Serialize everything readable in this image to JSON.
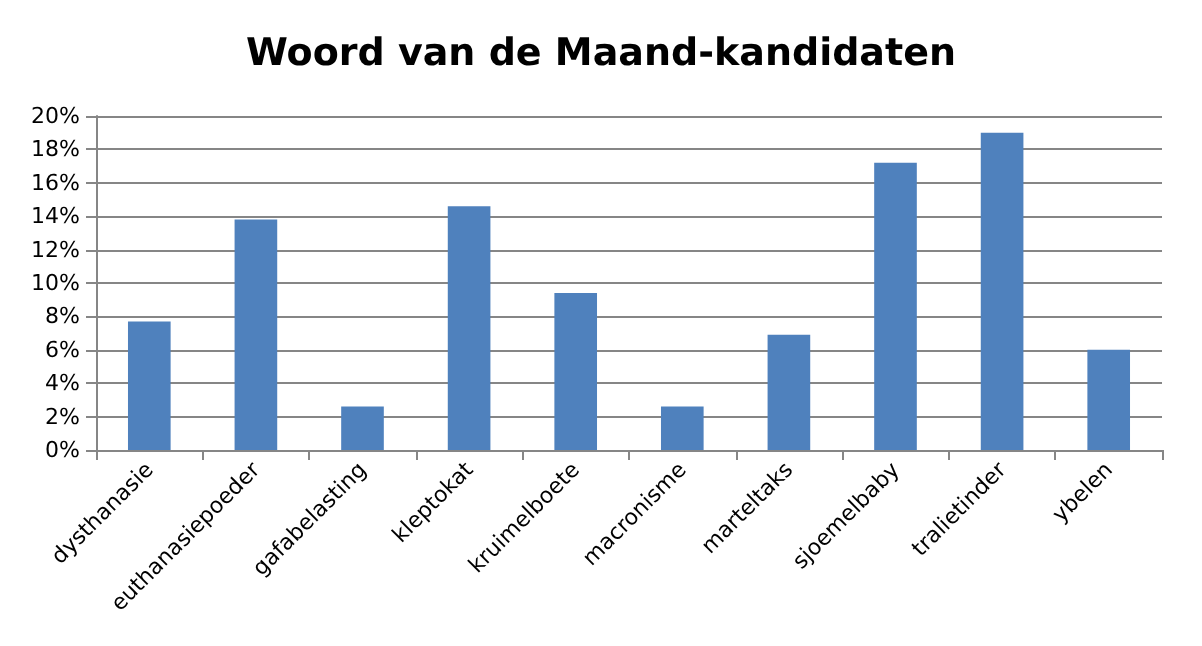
{
  "chart_data": {
    "type": "bar",
    "title": "Woord van de Maand-kandidaten",
    "categories": [
      "dysthanasie",
      "euthanasiepoeder",
      "gafabelasting",
      "kleptokat",
      "kruimelboete",
      "macronisme",
      "marteltaks",
      "sjoemelbaby",
      "tralietinder",
      "ybelen"
    ],
    "values": [
      7.7,
      13.8,
      2.6,
      14.6,
      9.4,
      2.6,
      6.9,
      17.2,
      19.0,
      6.0
    ],
    "color": "#4f81bd",
    "ylim": [
      0,
      20
    ],
    "yticks": [
      {
        "value": 0,
        "label": "0%"
      },
      {
        "value": 2,
        "label": "2%"
      },
      {
        "value": 4,
        "label": "4%"
      },
      {
        "value": 6,
        "label": "6%"
      },
      {
        "value": 8,
        "label": "8%"
      },
      {
        "value": 10,
        "label": "10%"
      },
      {
        "value": 12,
        "label": "12%"
      },
      {
        "value": 14,
        "label": "14%"
      },
      {
        "value": 16,
        "label": "16%"
      },
      {
        "value": 18,
        "label": "18%"
      },
      {
        "value": 20,
        "label": "20%"
      }
    ],
    "grid": "y"
  }
}
